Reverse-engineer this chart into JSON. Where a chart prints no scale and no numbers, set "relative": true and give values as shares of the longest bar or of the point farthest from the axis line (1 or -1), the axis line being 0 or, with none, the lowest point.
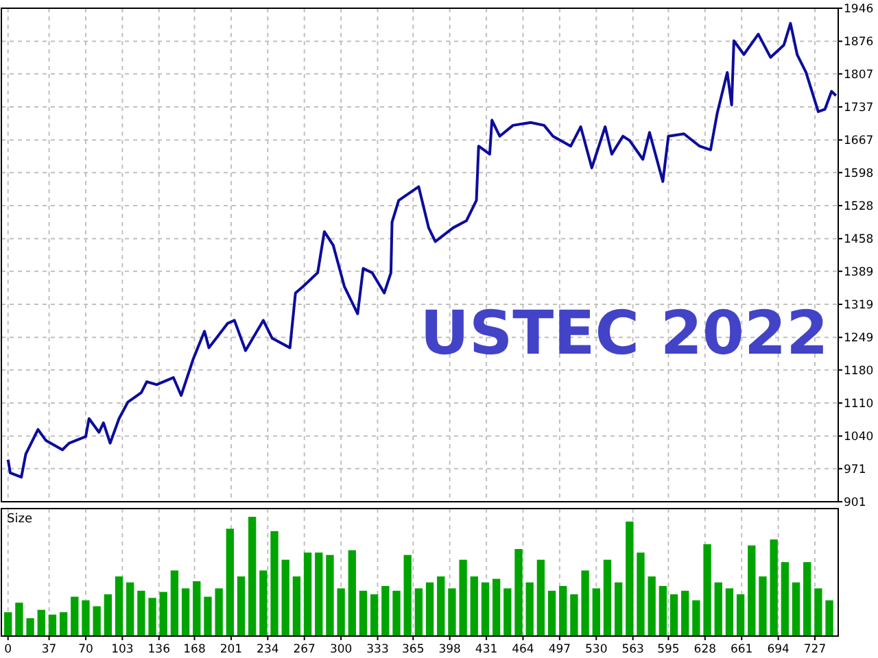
{
  "chart_data": [
    {
      "type": "line",
      "title": "USTEC 2022",
      "color": "#0c0c9c",
      "line_style": "solid",
      "marker": "none",
      "grid": true,
      "tick_labels": "y",
      "x": [
        0,
        2,
        12,
        16,
        27,
        34,
        49,
        55,
        70,
        73,
        82,
        86,
        92,
        100,
        108,
        120,
        125,
        134,
        149,
        156,
        167,
        177,
        181,
        198,
        204,
        214,
        230,
        238,
        254,
        259,
        266,
        279,
        285,
        293,
        303,
        315,
        320,
        328,
        339,
        345,
        346,
        352,
        370,
        379,
        385,
        401,
        413,
        422,
        424,
        434,
        436,
        443,
        455,
        471,
        483,
        491,
        507,
        516,
        526,
        538,
        544,
        554,
        560,
        572,
        578,
        590,
        595,
        609,
        623,
        633,
        639,
        648,
        652,
        654,
        663,
        676,
        687,
        699,
        705,
        711,
        719,
        730,
        736,
        742,
        746
      ],
      "values": [
        990,
        962,
        953,
        1002,
        1054,
        1031,
        1011,
        1025,
        1039,
        1077,
        1048,
        1068,
        1025,
        1077,
        1112,
        1132,
        1155,
        1149,
        1164,
        1126,
        1204,
        1262,
        1227,
        1279,
        1285,
        1221,
        1285,
        1247,
        1227,
        1343,
        1357,
        1386,
        1473,
        1444,
        1357,
        1299,
        1395,
        1386,
        1343,
        1386,
        1493,
        1539,
        1568,
        1481,
        1452,
        1481,
        1496,
        1539,
        1654,
        1637,
        1709,
        1675,
        1698,
        1704,
        1698,
        1675,
        1654,
        1695,
        1608,
        1695,
        1637,
        1675,
        1666,
        1626,
        1683,
        1579,
        1675,
        1680,
        1654,
        1646,
        1724,
        1810,
        1741,
        1877,
        1848,
        1891,
        1842,
        1868,
        1914,
        1848,
        1810,
        1727,
        1732,
        1770,
        1761
      ],
      "xlim": [
        -6,
        748
      ],
      "xticks": [
        0,
        37,
        70,
        103,
        136,
        168,
        201,
        234,
        267,
        300,
        333,
        365,
        398,
        431,
        464,
        497,
        530,
        563,
        595,
        628,
        661,
        694,
        727
      ],
      "ylim": [
        901,
        1946
      ],
      "yticks": [
        901,
        971,
        1040,
        1110,
        1180,
        1249,
        1319,
        1389,
        1458,
        1528,
        1598,
        1667,
        1737,
        1807,
        1876,
        1946
      ]
    },
    {
      "type": "bar",
      "title": "Size",
      "color": "#00a400",
      "relative": true,
      "grid": "x",
      "tick_labels": "x",
      "x": [
        0,
        10,
        20,
        30,
        40,
        50,
        60,
        70,
        80,
        90,
        100,
        110,
        120,
        130,
        140,
        150,
        160,
        170,
        180,
        190,
        200,
        210,
        220,
        230,
        240,
        250,
        260,
        270,
        280,
        290,
        300,
        310,
        320,
        330,
        340,
        350,
        360,
        370,
        380,
        390,
        400,
        410,
        420,
        430,
        440,
        450,
        460,
        470,
        480,
        490,
        500,
        510,
        520,
        530,
        540,
        550,
        560,
        570,
        580,
        590,
        600,
        610,
        620,
        630,
        640,
        650,
        660,
        670,
        680,
        690,
        700,
        710,
        720,
        730,
        740
      ],
      "values": [
        0.2,
        0.28,
        0.15,
        0.22,
        0.18,
        0.2,
        0.33,
        0.3,
        0.25,
        0.35,
        0.5,
        0.45,
        0.38,
        0.32,
        0.37,
        0.55,
        0.4,
        0.46,
        0.33,
        0.4,
        0.9,
        0.5,
        1,
        0.55,
        0.88,
        0.64,
        0.5,
        0.7,
        0.7,
        0.68,
        0.4,
        0.72,
        0.38,
        0.35,
        0.42,
        0.38,
        0.68,
        0.4,
        0.45,
        0.5,
        0.4,
        0.64,
        0.5,
        0.45,
        0.48,
        0.4,
        0.73,
        0.45,
        0.64,
        0.38,
        0.42,
        0.35,
        0.55,
        0.4,
        0.64,
        0.45,
        0.96,
        0.7,
        0.5,
        0.42,
        0.35,
        0.38,
        0.3,
        0.77,
        0.45,
        0.4,
        0.35,
        0.76,
        0.5,
        0.81,
        0.62,
        0.45,
        0.62,
        0.4,
        0.3
      ],
      "xlim": [
        -6,
        748
      ],
      "xticks": [
        0,
        37,
        70,
        103,
        136,
        168,
        201,
        234,
        267,
        300,
        333,
        365,
        398,
        431,
        464,
        497,
        530,
        563,
        595,
        628,
        661,
        694,
        727
      ]
    }
  ]
}
